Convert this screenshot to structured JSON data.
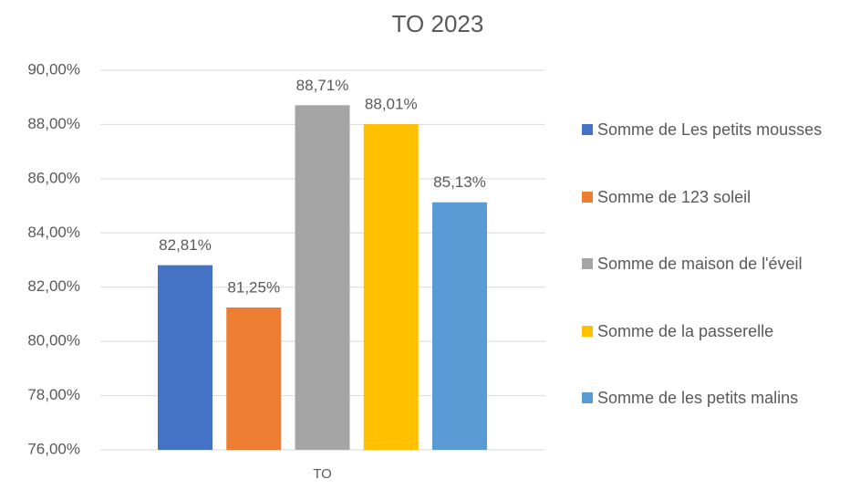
{
  "chart_data": {
    "type": "bar",
    "title": "TO 2023",
    "categories": [
      "TO"
    ],
    "series": [
      {
        "name": "Somme de Les petits mousses",
        "color": "#4472c4",
        "values": [
          82.81
        ],
        "value_labels": [
          "82,81%"
        ]
      },
      {
        "name": "Somme de 123 soleil",
        "color": "#ed7d31",
        "values": [
          81.25
        ],
        "value_labels": [
          "81,25%"
        ]
      },
      {
        "name": "Somme de maison de l'éveil",
        "color": "#a5a5a5",
        "values": [
          88.71
        ],
        "value_labels": [
          "88,71%"
        ]
      },
      {
        "name": "Somme de la passerelle",
        "color": "#ffc000",
        "values": [
          88.01
        ],
        "value_labels": [
          "88,01%"
        ]
      },
      {
        "name": "Somme de les petits malins",
        "color": "#5b9bd5",
        "values": [
          85.13
        ],
        "value_labels": [
          "85,13%"
        ]
      }
    ],
    "ylim": [
      76,
      90
    ],
    "yticks": [
      {
        "value": 76,
        "label": "76,00%"
      },
      {
        "value": 78,
        "label": "78,00%"
      },
      {
        "value": 80,
        "label": "80,00%"
      },
      {
        "value": 82,
        "label": "82,00%"
      },
      {
        "value": 84,
        "label": "84,00%"
      },
      {
        "value": 86,
        "label": "86,00%"
      },
      {
        "value": 88,
        "label": "88,00%"
      },
      {
        "value": 90,
        "label": "90,00%"
      }
    ],
    "grid": true,
    "legend": "right"
  }
}
